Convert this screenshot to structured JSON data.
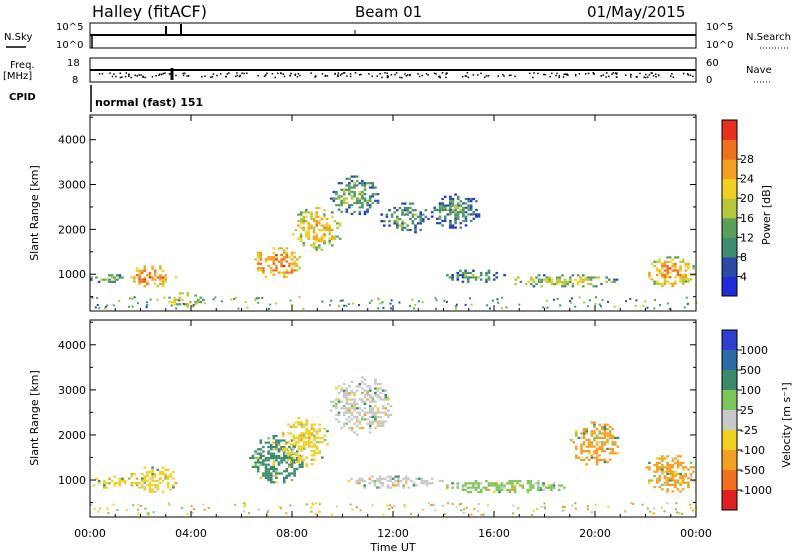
{
  "header": {
    "station": "Halley (fitACF)",
    "beam": "Beam 01",
    "date": "01/May/2015"
  },
  "top_panels": {
    "nsky_label": "N.Sky",
    "nsearch_label": "N.Search",
    "nsky_ticks": [
      "10^5",
      "10^0"
    ],
    "nsearch_ticks": [
      "10^5",
      "10^0"
    ],
    "freq_label_1": "Freq.",
    "freq_label_2": "[MHz]",
    "freq_ticks": [
      "18",
      "8"
    ],
    "nave_ticks": [
      "60",
      "0"
    ],
    "nave_label": "Nave",
    "cpid_label": "CPID",
    "cpid_value": "normal (fast) 151"
  },
  "colors": {
    "power_scale": [
      "#1f2bd9",
      "#2a4aa8",
      "#3f8c72",
      "#5aa05a",
      "#b4c83a",
      "#f0d020",
      "#f3a020",
      "#f07020",
      "#e83020"
    ],
    "velocity_scale": [
      "#2d3fd0",
      "#2e6aa5",
      "#3b8a6a",
      "#7cc65a",
      "#c8c8c8",
      "#f0d020",
      "#f3a020",
      "#f07020",
      "#e02020"
    ]
  },
  "chart_data": [
    {
      "type": "heatmap",
      "title": "",
      "xlabel": "Time UT",
      "ylabel": "Slant Range [km]",
      "x_ticks": [
        "00:00",
        "04:00",
        "08:00",
        "12:00",
        "16:00",
        "20:00",
        "00:00"
      ],
      "xlim": [
        0,
        24
      ],
      "y_ticks": [
        1000,
        2000,
        3000,
        4000
      ],
      "ylim": [
        180,
        4550
      ],
      "colorbar_label": "Power [dB]",
      "colorbar_ticks": [
        "4",
        "8",
        "12",
        "16",
        "20",
        "24",
        "28"
      ],
      "regions": [
        {
          "x": [
            0.0,
            1.5
          ],
          "y": [
            800,
            1000
          ],
          "value": 14
        },
        {
          "x": [
            1.5,
            3.5
          ],
          "y": [
            700,
            1200
          ],
          "value": 26
        },
        {
          "x": [
            3.0,
            4.5
          ],
          "y": [
            250,
            600
          ],
          "value": 20
        },
        {
          "x": [
            6.3,
            8.5
          ],
          "y": [
            900,
            1600
          ],
          "value": 26
        },
        {
          "x": [
            8.0,
            10.0
          ],
          "y": [
            1500,
            2500
          ],
          "value": 22
        },
        {
          "x": [
            9.5,
            11.5
          ],
          "y": [
            2300,
            3200
          ],
          "value": 14
        },
        {
          "x": [
            11.5,
            13.5
          ],
          "y": [
            1900,
            2600
          ],
          "value": 12
        },
        {
          "x": [
            13.5,
            15.5
          ],
          "y": [
            2000,
            2800
          ],
          "value": 12
        },
        {
          "x": [
            14.0,
            16.5
          ],
          "y": [
            800,
            1100
          ],
          "value": 12
        },
        {
          "x": [
            16.5,
            21.0
          ],
          "y": [
            700,
            1000
          ],
          "value": 18
        },
        {
          "x": [
            22.0,
            24.0
          ],
          "y": [
            700,
            1400
          ],
          "value": 24
        }
      ]
    },
    {
      "type": "heatmap",
      "title": "",
      "xlabel": "Time UT",
      "ylabel": "Slant Range [km]",
      "x_ticks": [
        "00:00",
        "04:00",
        "08:00",
        "12:00",
        "16:00",
        "20:00",
        "00:00"
      ],
      "xlim": [
        0,
        24
      ],
      "y_ticks": [
        1000,
        2000,
        3000,
        4000
      ],
      "ylim": [
        180,
        4550
      ],
      "colorbar_label": "Velocity [m s⁻¹]",
      "colorbar_ticks": [
        "1000",
        "500",
        "100",
        "25",
        "-25",
        "-100",
        "-500",
        "-1000"
      ],
      "regions": [
        {
          "x": [
            0.0,
            1.5
          ],
          "y": [
            800,
            1100
          ],
          "value": -100
        },
        {
          "x": [
            1.5,
            3.5
          ],
          "y": [
            700,
            1300
          ],
          "value": -100
        },
        {
          "x": [
            6.3,
            8.5
          ],
          "y": [
            900,
            2000
          ],
          "value": 100
        },
        {
          "x": [
            7.5,
            9.5
          ],
          "y": [
            1300,
            2400
          ],
          "value": -100
        },
        {
          "x": [
            9.5,
            12.0
          ],
          "y": [
            2000,
            3300
          ],
          "value": 0
        },
        {
          "x": [
            10.0,
            14.0
          ],
          "y": [
            800,
            1100
          ],
          "value": -25
        },
        {
          "x": [
            14.0,
            19.0
          ],
          "y": [
            700,
            1000
          ],
          "value": 25
        },
        {
          "x": [
            19.0,
            21.0
          ],
          "y": [
            1300,
            2300
          ],
          "value": -500
        },
        {
          "x": [
            22.0,
            24.0
          ],
          "y": [
            700,
            1600
          ],
          "value": -500
        }
      ]
    }
  ]
}
